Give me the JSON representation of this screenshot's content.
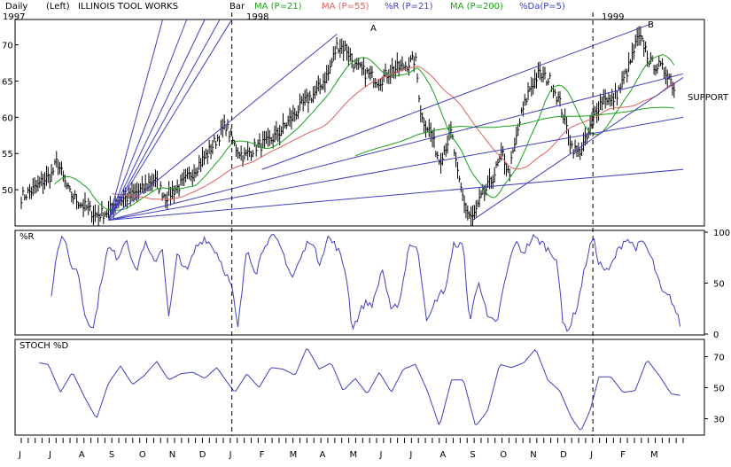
{
  "header": {
    "period": "Daily",
    "scale_side": "(Left)",
    "security": "ILLINOIS TOOL WORKS",
    "style": "Bar",
    "legend": [
      {
        "label": "MA (P=21)",
        "color": "#1aa01a"
      },
      {
        "label": "MA (P=55)",
        "color": "#e06060"
      },
      {
        "label": "%R (P=21)",
        "color": "#4040c0"
      },
      {
        "label": "MA (P=200)",
        "color": "#1aa01a"
      },
      {
        "label": "%Da(P=5)",
        "color": "#4040c0"
      }
    ]
  },
  "year_labels": [
    "1997",
    "1998",
    "1999"
  ],
  "annotations": {
    "peak_a": "A",
    "peak_b": "B",
    "support": "SUPPORT"
  },
  "colors": {
    "price": "#000000",
    "ma21": "#1aa01a",
    "ma55": "#e06060",
    "ma200": "#1aa01a",
    "indicator": "#4040c0",
    "trendline": "#4040c0",
    "divider": "#000000"
  },
  "chart_data": [
    {
      "type": "line",
      "panel": "price",
      "title": "",
      "xlabel": "",
      "ylabel": "",
      "ylim": [
        45,
        73.5
      ],
      "y_ticks": [
        50,
        55,
        60,
        65,
        70
      ],
      "x_tick_labels": [
        "J",
        "J",
        "A",
        "S",
        "O",
        "N",
        "D",
        "J",
        "F",
        "M",
        "A",
        "M",
        "J",
        "J",
        "A",
        "S",
        "O",
        "N",
        "D",
        "J",
        "F",
        "M"
      ],
      "year_divider_months": [
        7,
        19
      ],
      "keypoints": [
        [
          0,
          49
        ],
        [
          0.4,
          50
        ],
        [
          0.8,
          51.5
        ],
        [
          1.0,
          52
        ],
        [
          1.2,
          54
        ],
        [
          1.4,
          51.5
        ],
        [
          1.6,
          49.5
        ],
        [
          2.0,
          48
        ],
        [
          2.5,
          46.5
        ],
        [
          2.9,
          47
        ],
        [
          3.2,
          48.5
        ],
        [
          3.6,
          49
        ],
        [
          4.0,
          50
        ],
        [
          4.4,
          51.5
        ],
        [
          4.8,
          49
        ],
        [
          5.1,
          50
        ],
        [
          5.4,
          51
        ],
        [
          5.8,
          53
        ],
        [
          6.2,
          55
        ],
        [
          6.5,
          57
        ],
        [
          6.8,
          59
        ],
        [
          7.1,
          56
        ],
        [
          7.4,
          54.5
        ],
        [
          7.8,
          56
        ],
        [
          8.2,
          56.5
        ],
        [
          8.6,
          58
        ],
        [
          9.0,
          60
        ],
        [
          9.4,
          62
        ],
        [
          9.8,
          63.5
        ],
        [
          10.2,
          66
        ],
        [
          10.5,
          70
        ],
        [
          10.8,
          69.5
        ],
        [
          11.1,
          67
        ],
        [
          11.5,
          66
        ],
        [
          11.9,
          65
        ],
        [
          12.3,
          66.5
        ],
        [
          12.7,
          67
        ],
        [
          13.1,
          68
        ],
        [
          13.3,
          60
        ],
        [
          13.6,
          58
        ],
        [
          13.9,
          54
        ],
        [
          14.3,
          58
        ],
        [
          14.5,
          52
        ],
        [
          14.8,
          47
        ],
        [
          15.0,
          46
        ],
        [
          15.3,
          49
        ],
        [
          15.6,
          51
        ],
        [
          16.0,
          55
        ],
        [
          16.2,
          52
        ],
        [
          16.6,
          60
        ],
        [
          16.9,
          64
        ],
        [
          17.2,
          66
        ],
        [
          17.6,
          65
        ],
        [
          17.9,
          62
        ],
        [
          18.1,
          59
        ],
        [
          18.3,
          56
        ],
        [
          18.5,
          55
        ],
        [
          18.8,
          57
        ],
        [
          19.1,
          61
        ],
        [
          19.4,
          63
        ],
        [
          19.6,
          62
        ],
        [
          19.9,
          64
        ],
        [
          20.2,
          67
        ],
        [
          20.5,
          71
        ],
        [
          20.7,
          70
        ],
        [
          20.9,
          67.5
        ],
        [
          21.2,
          67
        ],
        [
          21.5,
          66
        ],
        [
          21.7,
          64
        ]
      ],
      "ma": [
        {
          "name": "MA (P=21)",
          "period": 21
        },
        {
          "name": "MA (P=55)",
          "period": 55
        },
        {
          "name": "MA (P=200)",
          "period": 200
        }
      ],
      "trendlines": [
        {
          "from": [
            2.9,
            45.8
          ],
          "to": [
            4.7,
            73.5
          ]
        },
        {
          "from": [
            2.9,
            45.8
          ],
          "to": [
            5.5,
            73.5
          ]
        },
        {
          "from": [
            2.9,
            45.8
          ],
          "to": [
            6.1,
            73.5
          ]
        },
        {
          "from": [
            2.9,
            45.8
          ],
          "to": [
            6.6,
            73.5
          ]
        },
        {
          "from": [
            2.9,
            45.8
          ],
          "to": [
            7.0,
            73.5
          ]
        },
        {
          "from": [
            2.9,
            45.8
          ],
          "to": [
            10.5,
            71.5
          ]
        },
        {
          "from": [
            2.9,
            45.8
          ],
          "to": [
            22.0,
            66.0
          ]
        },
        {
          "from": [
            2.9,
            45.8
          ],
          "to": [
            22.0,
            60.0
          ]
        },
        {
          "from": [
            2.9,
            45.8
          ],
          "to": [
            22.0,
            52.8
          ]
        },
        {
          "from": [
            15.0,
            45.8
          ],
          "to": [
            22.0,
            65.5
          ]
        },
        {
          "from": [
            8.0,
            52.8
          ],
          "to": [
            21.0,
            73.0
          ]
        }
      ]
    },
    {
      "type": "line",
      "panel": "williams_r",
      "title": "%R",
      "ylim": [
        0,
        100
      ],
      "y_ticks": [
        0,
        50,
        100
      ],
      "keypoints": [
        [
          1.0,
          40
        ],
        [
          1.2,
          85
        ],
        [
          1.4,
          98
        ],
        [
          1.6,
          70
        ],
        [
          1.9,
          60
        ],
        [
          2.1,
          20
        ],
        [
          2.4,
          5
        ],
        [
          2.7,
          60
        ],
        [
          2.9,
          85
        ],
        [
          3.2,
          75
        ],
        [
          3.5,
          95
        ],
        [
          3.8,
          60
        ],
        [
          4.1,
          90
        ],
        [
          4.4,
          70
        ],
        [
          4.7,
          85
        ],
        [
          4.9,
          15
        ],
        [
          5.2,
          80
        ],
        [
          5.5,
          60
        ],
        [
          5.8,
          85
        ],
        [
          6.1,
          95
        ],
        [
          6.5,
          80
        ],
        [
          6.8,
          60
        ],
        [
          7.0,
          45
        ],
        [
          7.2,
          5
        ],
        [
          7.5,
          85
        ],
        [
          7.8,
          60
        ],
        [
          8.1,
          90
        ],
        [
          8.4,
          95
        ],
        [
          8.7,
          80
        ],
        [
          9.0,
          55
        ],
        [
          9.3,
          75
        ],
        [
          9.6,
          95
        ],
        [
          9.9,
          70
        ],
        [
          10.2,
          95
        ],
        [
          10.5,
          85
        ],
        [
          10.8,
          60
        ],
        [
          11.0,
          5
        ],
        [
          11.4,
          30
        ],
        [
          11.7,
          30
        ],
        [
          12.0,
          65
        ],
        [
          12.3,
          20
        ],
        [
          12.6,
          35
        ],
        [
          12.9,
          90
        ],
        [
          13.2,
          80
        ],
        [
          13.5,
          10
        ],
        [
          13.8,
          35
        ],
        [
          14.1,
          45
        ],
        [
          14.4,
          90
        ],
        [
          14.7,
          85
        ],
        [
          14.9,
          10
        ],
        [
          15.2,
          55
        ],
        [
          15.5,
          15
        ],
        [
          15.8,
          10
        ],
        [
          16.1,
          55
        ],
        [
          16.4,
          90
        ],
        [
          16.7,
          80
        ],
        [
          17.0,
          95
        ],
        [
          17.3,
          90
        ],
        [
          17.6,
          80
        ],
        [
          17.8,
          75
        ],
        [
          18.0,
          10
        ],
        [
          18.2,
          5
        ],
        [
          18.5,
          30
        ],
        [
          18.8,
          75
        ],
        [
          19.0,
          95
        ],
        [
          19.2,
          70
        ],
        [
          19.5,
          60
        ],
        [
          19.8,
          80
        ],
        [
          20.1,
          95
        ],
        [
          20.4,
          85
        ],
        [
          20.7,
          90
        ],
        [
          21.0,
          70
        ],
        [
          21.3,
          40
        ],
        [
          21.6,
          35
        ],
        [
          21.9,
          10
        ]
      ]
    },
    {
      "type": "line",
      "panel": "stochastic_d",
      "title": "STOCH %D",
      "ylim": [
        20,
        80
      ],
      "y_ticks": [
        30,
        50,
        70
      ],
      "keypoints": [
        [
          0.6,
          66
        ],
        [
          0.9,
          65
        ],
        [
          1.3,
          47
        ],
        [
          1.7,
          60
        ],
        [
          2.1,
          44
        ],
        [
          2.5,
          30
        ],
        [
          2.9,
          53
        ],
        [
          3.3,
          64
        ],
        [
          3.7,
          52
        ],
        [
          4.1,
          58
        ],
        [
          4.5,
          67
        ],
        [
          4.9,
          55
        ],
        [
          5.3,
          59
        ],
        [
          5.7,
          60
        ],
        [
          6.1,
          56
        ],
        [
          6.5,
          63
        ],
        [
          6.9,
          52
        ],
        [
          7.1,
          47
        ],
        [
          7.5,
          59
        ],
        [
          7.9,
          50
        ],
        [
          8.3,
          63
        ],
        [
          8.7,
          62
        ],
        [
          9.1,
          58
        ],
        [
          9.5,
          76
        ],
        [
          9.9,
          62
        ],
        [
          10.3,
          66
        ],
        [
          10.7,
          48
        ],
        [
          11.1,
          56
        ],
        [
          11.5,
          46
        ],
        [
          11.9,
          60
        ],
        [
          12.3,
          47
        ],
        [
          12.7,
          62
        ],
        [
          13.1,
          65
        ],
        [
          13.5,
          48
        ],
        [
          13.9,
          25
        ],
        [
          14.3,
          55
        ],
        [
          14.7,
          55
        ],
        [
          15.1,
          25
        ],
        [
          15.5,
          35
        ],
        [
          15.9,
          65
        ],
        [
          16.3,
          63
        ],
        [
          16.7,
          66
        ],
        [
          17.1,
          75
        ],
        [
          17.5,
          55
        ],
        [
          17.9,
          48
        ],
        [
          18.3,
          30
        ],
        [
          18.6,
          22
        ],
        [
          18.9,
          35
        ],
        [
          19.2,
          57
        ],
        [
          19.6,
          57
        ],
        [
          20.0,
          47
        ],
        [
          20.4,
          48
        ],
        [
          20.8,
          68
        ],
        [
          21.2,
          58
        ],
        [
          21.6,
          46
        ],
        [
          21.9,
          45
        ]
      ]
    }
  ]
}
